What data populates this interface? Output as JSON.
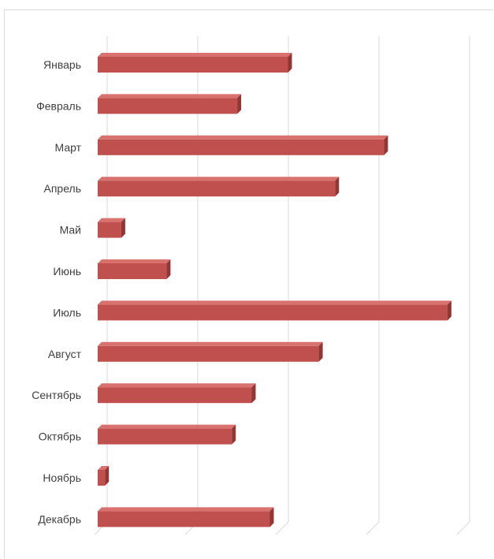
{
  "chart_data": {
    "type": "bar",
    "orientation": "horizontal",
    "style": "3d-clustered-bar",
    "title": "",
    "xlabel": "",
    "ylabel": "",
    "categories": [
      "Январь",
      "Февраль",
      "Март",
      "Апрель",
      "Май",
      "Июнь",
      "Июль",
      "Август",
      "Сентябрь",
      "Октябрь",
      "Ноябрь",
      "Декабрь"
    ],
    "values": [
      105,
      77,
      158,
      131,
      13,
      38,
      193,
      122,
      85,
      74,
      4,
      95
    ],
    "xlim": [
      0,
      200
    ],
    "grid": "vertical",
    "tick_labels_visible": false,
    "legend": "none",
    "colors": {
      "bar_front": "#c0504d",
      "bar_top": "#d9716e",
      "bar_side": "#8c3836",
      "gridline": "#d9d9d9",
      "label": "#404040"
    }
  }
}
